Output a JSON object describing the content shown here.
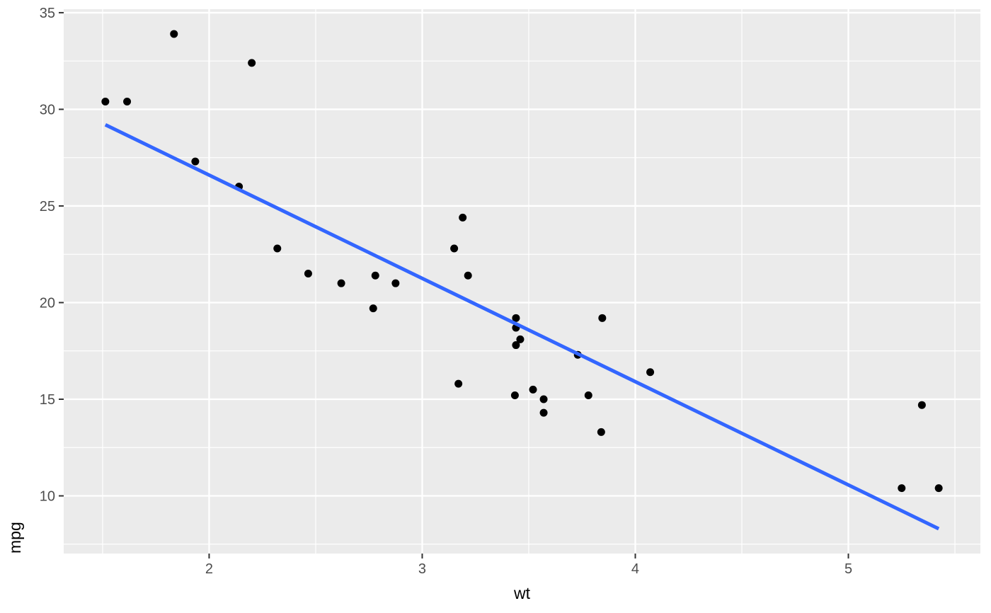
{
  "chart_data": {
    "type": "scatter",
    "title": "",
    "xlabel": "wt",
    "ylabel": "mpg",
    "xlim": [
      1.3175,
      5.6195
    ],
    "ylim": [
      7.016,
      35.18
    ],
    "x_major_ticks": [
      2,
      3,
      4,
      5
    ],
    "x_minor_ticks": [
      1.5,
      2.5,
      3.5,
      4.5,
      5.5
    ],
    "y_major_ticks": [
      10,
      15,
      20,
      25,
      30,
      35
    ],
    "y_minor_ticks": [
      7.5,
      12.5,
      17.5,
      22.5,
      27.5,
      32.5
    ],
    "grid": "major-and-minor",
    "legend_position": "none",
    "points": [
      [
        2.62,
        21.0
      ],
      [
        2.875,
        21.0
      ],
      [
        2.32,
        22.8
      ],
      [
        3.215,
        21.4
      ],
      [
        3.44,
        18.7
      ],
      [
        3.46,
        18.1
      ],
      [
        3.57,
        14.3
      ],
      [
        3.19,
        24.4
      ],
      [
        3.15,
        22.8
      ],
      [
        3.44,
        19.2
      ],
      [
        3.44,
        17.8
      ],
      [
        4.07,
        16.4
      ],
      [
        3.73,
        17.3
      ],
      [
        3.78,
        15.2
      ],
      [
        5.25,
        10.4
      ],
      [
        5.424,
        10.4
      ],
      [
        5.345,
        14.7
      ],
      [
        2.2,
        32.4
      ],
      [
        1.615,
        30.4
      ],
      [
        1.835,
        33.9
      ],
      [
        2.465,
        21.5
      ],
      [
        3.52,
        15.5
      ],
      [
        3.435,
        15.2
      ],
      [
        3.84,
        13.3
      ],
      [
        3.845,
        19.2
      ],
      [
        1.935,
        27.3
      ],
      [
        2.14,
        26.0
      ],
      [
        1.513,
        30.4
      ],
      [
        3.17,
        15.8
      ],
      [
        2.77,
        19.7
      ],
      [
        3.57,
        15.0
      ],
      [
        2.78,
        21.4
      ]
    ],
    "trend_line": {
      "type": "linear",
      "slope": -5.344,
      "intercept": 37.285,
      "x_start": 1.513,
      "y_start": 29.2,
      "x_end": 5.424,
      "y_end": 8.3
    },
    "colors": {
      "panel_background": "#EBEBEB",
      "plot_background": "#FFFFFF",
      "grid_major": "#FFFFFF",
      "grid_minor": "#FFFFFF",
      "point": "#000000",
      "trend_line": "#3366FF",
      "tick_label": "#4D4D4D",
      "tick_mark": "#333333",
      "axis_title": "#000000"
    }
  }
}
